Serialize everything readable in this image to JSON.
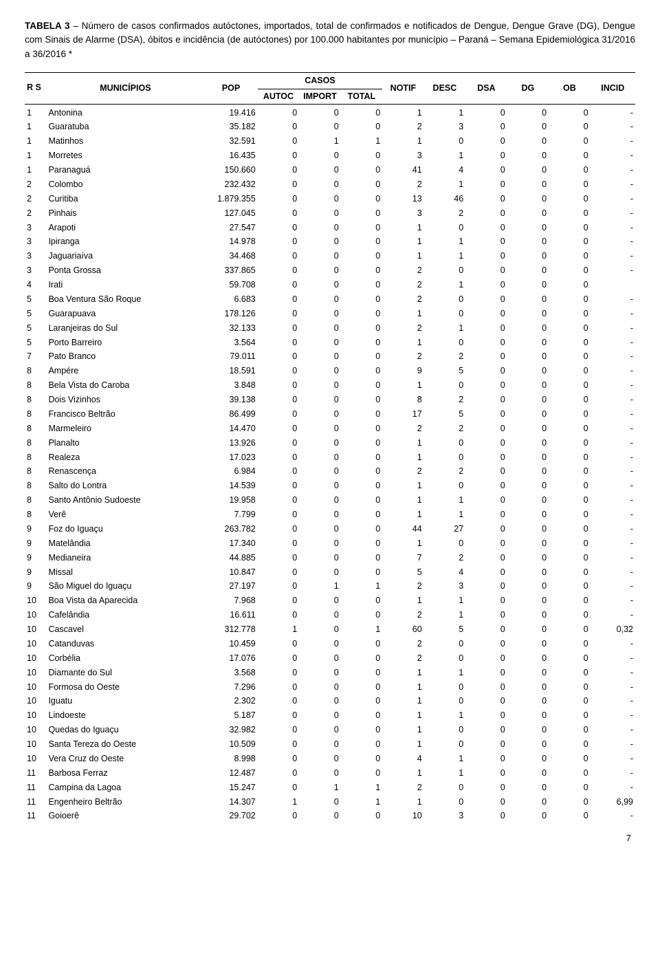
{
  "title_lead": "TABELA 3",
  "title_rest": " – Número de casos confirmados autóctones, importados, total de confirmados e notificados de Dengue, Dengue Grave (DG), Dengue com Sinais de Alarme (DSA), óbitos e incidência (de autóctones) por 100.000 habitantes por município – Paraná – Semana Epidemiológica 31/2016 a 36/2016 *",
  "header": {
    "rs": "R S",
    "municipios": "MUNICÍPIOS",
    "pop": "POP",
    "casos": "CASOS",
    "autoc": "AUTOC",
    "import": "IMPORT",
    "total": "TOTAL",
    "notif": "NOTIF",
    "desc": "DESC",
    "dsa": "DSA",
    "dg": "DG",
    "ob": "OB",
    "incid": "INCID"
  },
  "rows": [
    {
      "rs": "1",
      "mun": "Antonina",
      "pop": "19.416",
      "autoc": "0",
      "imp": "0",
      "tot": "0",
      "notif": "1",
      "desc": "1",
      "dsa": "0",
      "dg": "0",
      "ob": "0",
      "incid": "-"
    },
    {
      "rs": "1",
      "mun": "Guaratuba",
      "pop": "35.182",
      "autoc": "0",
      "imp": "0",
      "tot": "0",
      "notif": "2",
      "desc": "3",
      "dsa": "0",
      "dg": "0",
      "ob": "0",
      "incid": "-"
    },
    {
      "rs": "1",
      "mun": "Matinhos",
      "pop": "32.591",
      "autoc": "0",
      "imp": "1",
      "tot": "1",
      "notif": "1",
      "desc": "0",
      "dsa": "0",
      "dg": "0",
      "ob": "0",
      "incid": "-"
    },
    {
      "rs": "1",
      "mun": "Morretes",
      "pop": "16.435",
      "autoc": "0",
      "imp": "0",
      "tot": "0",
      "notif": "3",
      "desc": "1",
      "dsa": "0",
      "dg": "0",
      "ob": "0",
      "incid": "-"
    },
    {
      "rs": "1",
      "mun": "Paranaguá",
      "pop": "150.660",
      "autoc": "0",
      "imp": "0",
      "tot": "0",
      "notif": "41",
      "desc": "4",
      "dsa": "0",
      "dg": "0",
      "ob": "0",
      "incid": "-"
    },
    {
      "rs": "2",
      "mun": "Colombo",
      "pop": "232.432",
      "autoc": "0",
      "imp": "0",
      "tot": "0",
      "notif": "2",
      "desc": "1",
      "dsa": "0",
      "dg": "0",
      "ob": "0",
      "incid": "-"
    },
    {
      "rs": "2",
      "mun": "Curitiba",
      "pop": "1.879.355",
      "autoc": "0",
      "imp": "0",
      "tot": "0",
      "notif": "13",
      "desc": "46",
      "dsa": "0",
      "dg": "0",
      "ob": "0",
      "incid": "-"
    },
    {
      "rs": "2",
      "mun": "Pinhais",
      "pop": "127.045",
      "autoc": "0",
      "imp": "0",
      "tot": "0",
      "notif": "3",
      "desc": "2",
      "dsa": "0",
      "dg": "0",
      "ob": "0",
      "incid": "-"
    },
    {
      "rs": "3",
      "mun": "Arapoti",
      "pop": "27.547",
      "autoc": "0",
      "imp": "0",
      "tot": "0",
      "notif": "1",
      "desc": "0",
      "dsa": "0",
      "dg": "0",
      "ob": "0",
      "incid": "-"
    },
    {
      "rs": "3",
      "mun": "Ipiranga",
      "pop": "14.978",
      "autoc": "0",
      "imp": "0",
      "tot": "0",
      "notif": "1",
      "desc": "1",
      "dsa": "0",
      "dg": "0",
      "ob": "0",
      "incid": "-"
    },
    {
      "rs": "3",
      "mun": "Jaguariaíva",
      "pop": "34.468",
      "autoc": "0",
      "imp": "0",
      "tot": "0",
      "notif": "1",
      "desc": "1",
      "dsa": "0",
      "dg": "0",
      "ob": "0",
      "incid": "-"
    },
    {
      "rs": "3",
      "mun": "Ponta Grossa",
      "pop": "337.865",
      "autoc": "0",
      "imp": "0",
      "tot": "0",
      "notif": "2",
      "desc": "0",
      "dsa": "0",
      "dg": "0",
      "ob": "0",
      "incid": "-"
    },
    {
      "rs": "4",
      "mun": "Irati",
      "pop": "59.708",
      "autoc": "0",
      "imp": "0",
      "tot": "0",
      "notif": "2",
      "desc": "1",
      "dsa": "0",
      "dg": "0",
      "ob": "0",
      "incid": ""
    },
    {
      "rs": "5",
      "mun": "Boa Ventura São Roque",
      "pop": "6.683",
      "autoc": "0",
      "imp": "0",
      "tot": "0",
      "notif": "2",
      "desc": "0",
      "dsa": "0",
      "dg": "0",
      "ob": "0",
      "incid": "-"
    },
    {
      "rs": "5",
      "mun": "Guarapuava",
      "pop": "178.126",
      "autoc": "0",
      "imp": "0",
      "tot": "0",
      "notif": "1",
      "desc": "0",
      "dsa": "0",
      "dg": "0",
      "ob": "0",
      "incid": "-"
    },
    {
      "rs": "5",
      "mun": "Laranjeiras do Sul",
      "pop": "32.133",
      "autoc": "0",
      "imp": "0",
      "tot": "0",
      "notif": "2",
      "desc": "1",
      "dsa": "0",
      "dg": "0",
      "ob": "0",
      "incid": "-"
    },
    {
      "rs": "5",
      "mun": "Porto Barreiro",
      "pop": "3.564",
      "autoc": "0",
      "imp": "0",
      "tot": "0",
      "notif": "1",
      "desc": "0",
      "dsa": "0",
      "dg": "0",
      "ob": "0",
      "incid": "-"
    },
    {
      "rs": "7",
      "mun": "Pato Branco",
      "pop": "79.011",
      "autoc": "0",
      "imp": "0",
      "tot": "0",
      "notif": "2",
      "desc": "2",
      "dsa": "0",
      "dg": "0",
      "ob": "0",
      "incid": "-"
    },
    {
      "rs": "8",
      "mun": "Ampére",
      "pop": "18.591",
      "autoc": "0",
      "imp": "0",
      "tot": "0",
      "notif": "9",
      "desc": "5",
      "dsa": "0",
      "dg": "0",
      "ob": "0",
      "incid": "-"
    },
    {
      "rs": "8",
      "mun": "Bela Vista do Caroba",
      "pop": "3.848",
      "autoc": "0",
      "imp": "0",
      "tot": "0",
      "notif": "1",
      "desc": "0",
      "dsa": "0",
      "dg": "0",
      "ob": "0",
      "incid": "-"
    },
    {
      "rs": "8",
      "mun": "Dois Vizinhos",
      "pop": "39.138",
      "autoc": "0",
      "imp": "0",
      "tot": "0",
      "notif": "8",
      "desc": "2",
      "dsa": "0",
      "dg": "0",
      "ob": "0",
      "incid": "-"
    },
    {
      "rs": "8",
      "mun": "Francisco Beltrão",
      "pop": "86.499",
      "autoc": "0",
      "imp": "0",
      "tot": "0",
      "notif": "17",
      "desc": "5",
      "dsa": "0",
      "dg": "0",
      "ob": "0",
      "incid": "-"
    },
    {
      "rs": "8",
      "mun": "Marmeleiro",
      "pop": "14.470",
      "autoc": "0",
      "imp": "0",
      "tot": "0",
      "notif": "2",
      "desc": "2",
      "dsa": "0",
      "dg": "0",
      "ob": "0",
      "incid": "-"
    },
    {
      "rs": "8",
      "mun": "Planalto",
      "pop": "13.926",
      "autoc": "0",
      "imp": "0",
      "tot": "0",
      "notif": "1",
      "desc": "0",
      "dsa": "0",
      "dg": "0",
      "ob": "0",
      "incid": "-"
    },
    {
      "rs": "8",
      "mun": "Realeza",
      "pop": "17.023",
      "autoc": "0",
      "imp": "0",
      "tot": "0",
      "notif": "1",
      "desc": "0",
      "dsa": "0",
      "dg": "0",
      "ob": "0",
      "incid": "-"
    },
    {
      "rs": "8",
      "mun": "Renascença",
      "pop": "6.984",
      "autoc": "0",
      "imp": "0",
      "tot": "0",
      "notif": "2",
      "desc": "2",
      "dsa": "0",
      "dg": "0",
      "ob": "0",
      "incid": "-"
    },
    {
      "rs": "8",
      "mun": "Salto do Lontra",
      "pop": "14.539",
      "autoc": "0",
      "imp": "0",
      "tot": "0",
      "notif": "1",
      "desc": "0",
      "dsa": "0",
      "dg": "0",
      "ob": "0",
      "incid": "-"
    },
    {
      "rs": "8",
      "mun": "Santo Antônio Sudoeste",
      "pop": "19.958",
      "autoc": "0",
      "imp": "0",
      "tot": "0",
      "notif": "1",
      "desc": "1",
      "dsa": "0",
      "dg": "0",
      "ob": "0",
      "incid": "-"
    },
    {
      "rs": "8",
      "mun": "Verê",
      "pop": "7.799",
      "autoc": "0",
      "imp": "0",
      "tot": "0",
      "notif": "1",
      "desc": "1",
      "dsa": "0",
      "dg": "0",
      "ob": "0",
      "incid": "-"
    },
    {
      "rs": "9",
      "mun": "Foz do Iguaçu",
      "pop": "263.782",
      "autoc": "0",
      "imp": "0",
      "tot": "0",
      "notif": "44",
      "desc": "27",
      "dsa": "0",
      "dg": "0",
      "ob": "0",
      "incid": "-"
    },
    {
      "rs": "9",
      "mun": "Matelândia",
      "pop": "17.340",
      "autoc": "0",
      "imp": "0",
      "tot": "0",
      "notif": "1",
      "desc": "0",
      "dsa": "0",
      "dg": "0",
      "ob": "0",
      "incid": "-"
    },
    {
      "rs": "9",
      "mun": "Medianeira",
      "pop": "44.885",
      "autoc": "0",
      "imp": "0",
      "tot": "0",
      "notif": "7",
      "desc": "2",
      "dsa": "0",
      "dg": "0",
      "ob": "0",
      "incid": "-"
    },
    {
      "rs": "9",
      "mun": "Missal",
      "pop": "10.847",
      "autoc": "0",
      "imp": "0",
      "tot": "0",
      "notif": "5",
      "desc": "4",
      "dsa": "0",
      "dg": "0",
      "ob": "0",
      "incid": "-"
    },
    {
      "rs": "9",
      "mun": "São Miguel do Iguaçu",
      "pop": "27.197",
      "autoc": "0",
      "imp": "1",
      "tot": "1",
      "notif": "2",
      "desc": "3",
      "dsa": "0",
      "dg": "0",
      "ob": "0",
      "incid": "-"
    },
    {
      "rs": "10",
      "mun": "Boa Vista da Aparecida",
      "pop": "7.968",
      "autoc": "0",
      "imp": "0",
      "tot": "0",
      "notif": "1",
      "desc": "1",
      "dsa": "0",
      "dg": "0",
      "ob": "0",
      "incid": "-"
    },
    {
      "rs": "10",
      "mun": "Cafelândia",
      "pop": "16.611",
      "autoc": "0",
      "imp": "0",
      "tot": "0",
      "notif": "2",
      "desc": "1",
      "dsa": "0",
      "dg": "0",
      "ob": "0",
      "incid": "-"
    },
    {
      "rs": "10",
      "mun": "Cascavel",
      "pop": "312.778",
      "autoc": "1",
      "imp": "0",
      "tot": "1",
      "notif": "60",
      "desc": "5",
      "dsa": "0",
      "dg": "0",
      "ob": "0",
      "incid": "0,32"
    },
    {
      "rs": "10",
      "mun": "Catanduvas",
      "pop": "10.459",
      "autoc": "0",
      "imp": "0",
      "tot": "0",
      "notif": "2",
      "desc": "0",
      "dsa": "0",
      "dg": "0",
      "ob": "0",
      "incid": "-"
    },
    {
      "rs": "10",
      "mun": "Corbélia",
      "pop": "17.076",
      "autoc": "0",
      "imp": "0",
      "tot": "0",
      "notif": "2",
      "desc": "0",
      "dsa": "0",
      "dg": "0",
      "ob": "0",
      "incid": "-"
    },
    {
      "rs": "10",
      "mun": "Diamante do Sul",
      "pop": "3.568",
      "autoc": "0",
      "imp": "0",
      "tot": "0",
      "notif": "1",
      "desc": "1",
      "dsa": "0",
      "dg": "0",
      "ob": "0",
      "incid": "-"
    },
    {
      "rs": "10",
      "mun": "Formosa do Oeste",
      "pop": "7.296",
      "autoc": "0",
      "imp": "0",
      "tot": "0",
      "notif": "1",
      "desc": "0",
      "dsa": "0",
      "dg": "0",
      "ob": "0",
      "incid": "-"
    },
    {
      "rs": "10",
      "mun": "Iguatu",
      "pop": "2.302",
      "autoc": "0",
      "imp": "0",
      "tot": "0",
      "notif": "1",
      "desc": "0",
      "dsa": "0",
      "dg": "0",
      "ob": "0",
      "incid": "-"
    },
    {
      "rs": "10",
      "mun": "Lindoeste",
      "pop": "5.187",
      "autoc": "0",
      "imp": "0",
      "tot": "0",
      "notif": "1",
      "desc": "1",
      "dsa": "0",
      "dg": "0",
      "ob": "0",
      "incid": "-"
    },
    {
      "rs": "10",
      "mun": "Quedas do Iguaçu",
      "pop": "32.982",
      "autoc": "0",
      "imp": "0",
      "tot": "0",
      "notif": "1",
      "desc": "0",
      "dsa": "0",
      "dg": "0",
      "ob": "0",
      "incid": "-"
    },
    {
      "rs": "10",
      "mun": "Santa Tereza do Oeste",
      "pop": "10.509",
      "autoc": "0",
      "imp": "0",
      "tot": "0",
      "notif": "1",
      "desc": "0",
      "dsa": "0",
      "dg": "0",
      "ob": "0",
      "incid": "-"
    },
    {
      "rs": "10",
      "mun": "Vera Cruz do Oeste",
      "pop": "8.998",
      "autoc": "0",
      "imp": "0",
      "tot": "0",
      "notif": "4",
      "desc": "1",
      "dsa": "0",
      "dg": "0",
      "ob": "0",
      "incid": "-"
    },
    {
      "rs": "11",
      "mun": "Barbosa Ferraz",
      "pop": "12.487",
      "autoc": "0",
      "imp": "0",
      "tot": "0",
      "notif": "1",
      "desc": "1",
      "dsa": "0",
      "dg": "0",
      "ob": "0",
      "incid": "-"
    },
    {
      "rs": "11",
      "mun": "Campina da Lagoa",
      "pop": "15.247",
      "autoc": "0",
      "imp": "1",
      "tot": "1",
      "notif": "2",
      "desc": "0",
      "dsa": "0",
      "dg": "0",
      "ob": "0",
      "incid": "-"
    },
    {
      "rs": "11",
      "mun": "Engenheiro Beltrão",
      "pop": "14.307",
      "autoc": "1",
      "imp": "0",
      "tot": "1",
      "notif": "1",
      "desc": "0",
      "dsa": "0",
      "dg": "0",
      "ob": "0",
      "incid": "6,99"
    },
    {
      "rs": "11",
      "mun": "Goioerê",
      "pop": "29.702",
      "autoc": "0",
      "imp": "0",
      "tot": "0",
      "notif": "10",
      "desc": "3",
      "dsa": "0",
      "dg": "0",
      "ob": "0",
      "incid": "-"
    }
  ],
  "page_number": "7"
}
